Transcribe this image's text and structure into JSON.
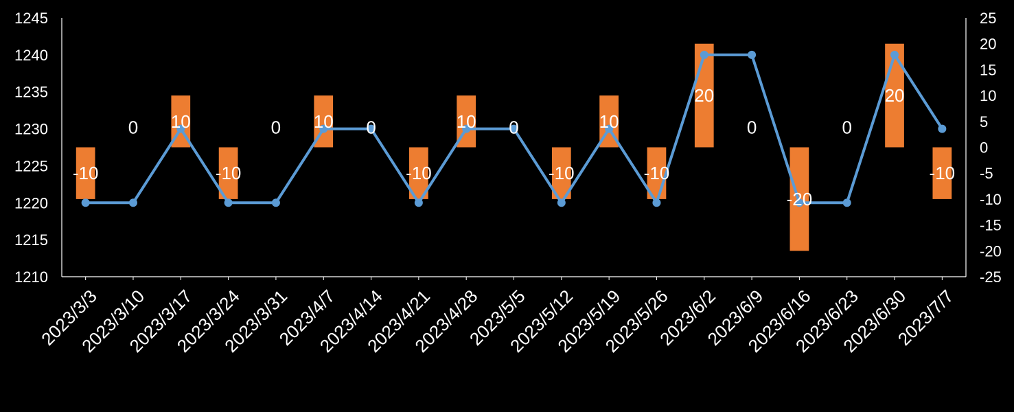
{
  "chart_data": {
    "type": "bar+line",
    "title": "",
    "xlabel": "",
    "ylabel": "",
    "y2label": "",
    "categories": [
      "2023/3/3",
      "2023/3/10",
      "2023/3/17",
      "2023/3/24",
      "2023/3/31",
      "2023/4/7",
      "2023/4/14",
      "2023/4/21",
      "2023/4/28",
      "2023/5/5",
      "2023/5/12",
      "2023/5/19",
      "2023/5/26",
      "2023/6/2",
      "2023/6/9",
      "2023/6/16",
      "2023/6/23",
      "2023/6/30",
      "2023/7/7"
    ],
    "line_values": [
      1220,
      1220,
      1230,
      1220,
      1220,
      1230,
      1230,
      1220,
      1230,
      1230,
      1220,
      1230,
      1220,
      1240,
      1240,
      1220,
      1220,
      1240,
      1230
    ],
    "bar_values": [
      -10,
      0,
      10,
      -10,
      0,
      10,
      0,
      -10,
      10,
      0,
      -10,
      10,
      -10,
      20,
      0,
      -20,
      0,
      20,
      -10
    ],
    "bar_labels": [
      "-10",
      "0",
      "10",
      "-10",
      "0",
      "10",
      "0",
      "-10",
      "10",
      "0",
      "-10",
      "10",
      "-10",
      "20",
      "0",
      "-20",
      "0",
      "20",
      "-10"
    ],
    "ylim": [
      1210,
      1245
    ],
    "y_ticks": [
      "1210",
      "1215",
      "1220",
      "1225",
      "1230",
      "1235",
      "1240",
      "1245"
    ],
    "y2lim": [
      -25,
      25
    ],
    "y2_ticks": [
      "-25",
      "-20",
      "-15",
      "-10",
      "-5",
      "0",
      "5",
      "10",
      "15",
      "20",
      "25"
    ],
    "grid": false,
    "legend": "none",
    "colors": {
      "line": "#5b9bd5",
      "bar": "#ed7d31",
      "axis": "#ffffff",
      "text": "#ffffff",
      "background": "#000000"
    }
  }
}
